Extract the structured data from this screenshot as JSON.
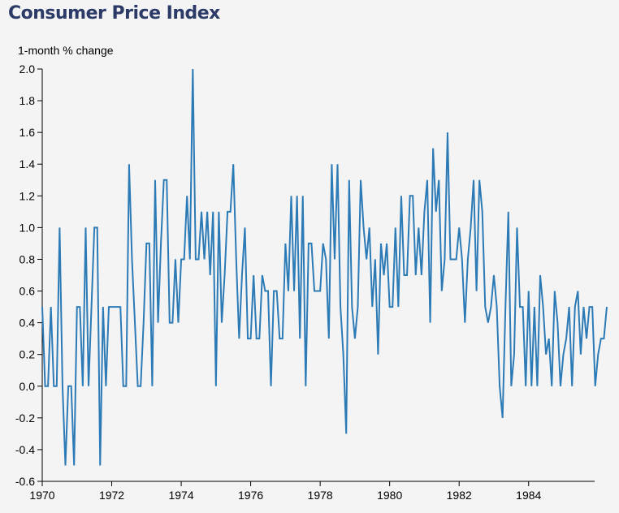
{
  "chart_data": {
    "type": "line",
    "title": "Consumer Price Index",
    "ylabel": "1-month % change",
    "xlabel": "",
    "ylim": [
      -0.6,
      2.0
    ],
    "xlim": [
      1970,
      1985.9
    ],
    "y_ticks": [
      "-0.6",
      "-0.4",
      "-0.2",
      "0.0",
      "0.2",
      "0.4",
      "0.6",
      "0.8",
      "1.0",
      "1.2",
      "1.4",
      "1.6",
      "1.8",
      "2.0"
    ],
    "x_ticks": [
      "1970",
      "1972",
      "1974",
      "1976",
      "1978",
      "1980",
      "1982",
      "1984"
    ],
    "line_color": "#2c7bb6",
    "series": [
      {
        "name": "CPI 1-month % change",
        "start": "1970-01",
        "frequency": "monthly",
        "values": [
          0.5,
          0.0,
          0.0,
          0.5,
          0.0,
          0.0,
          1.0,
          0.0,
          -0.5,
          0.0,
          0.0,
          -0.5,
          0.5,
          0.5,
          0.0,
          1.0,
          0.0,
          0.5,
          1.0,
          1.0,
          -0.5,
          0.5,
          0.0,
          0.5,
          0.5,
          0.5,
          0.5,
          0.5,
          0.0,
          0.0,
          1.4,
          0.8,
          0.4,
          0.0,
          0.0,
          0.4,
          0.9,
          0.9,
          0.0,
          1.3,
          0.4,
          0.9,
          1.3,
          1.3,
          0.4,
          0.4,
          0.8,
          0.4,
          0.8,
          0.8,
          1.2,
          0.8,
          2.0,
          0.8,
          0.8,
          1.1,
          0.8,
          1.1,
          0.7,
          1.1,
          0.0,
          1.1,
          0.4,
          0.7,
          1.1,
          1.1,
          1.4,
          0.8,
          0.3,
          0.7,
          1.0,
          0.3,
          0.3,
          0.7,
          0.3,
          0.3,
          0.7,
          0.6,
          0.6,
          0.0,
          0.6,
          0.6,
          0.3,
          0.3,
          0.9,
          0.6,
          1.2,
          0.6,
          1.2,
          0.3,
          1.2,
          0.0,
          0.9,
          0.9,
          0.6,
          0.6,
          0.6,
          0.9,
          0.8,
          0.3,
          1.4,
          0.8,
          1.4,
          0.5,
          0.2,
          -0.3,
          1.3,
          0.5,
          0.3,
          0.5,
          1.3,
          1.0,
          0.8,
          1.0,
          0.5,
          0.8,
          0.2,
          0.9,
          0.7,
          0.9,
          0.5,
          0.5,
          1.0,
          0.5,
          1.2,
          0.7,
          0.7,
          1.2,
          1.2,
          0.7,
          1.0,
          0.7,
          1.1,
          1.3,
          0.4,
          1.5,
          1.1,
          1.3,
          0.6,
          0.8,
          1.6,
          0.8,
          0.8,
          0.8,
          1.0,
          0.8,
          0.4,
          0.8,
          1.0,
          1.3,
          0.6,
          1.3,
          1.1,
          0.5,
          0.4,
          0.5,
          0.7,
          0.5,
          0.0,
          -0.2,
          0.5,
          1.1,
          0.0,
          0.2,
          1.0,
          0.5,
          0.5,
          0.0,
          0.6,
          0.0,
          0.5,
          0.0,
          0.7,
          0.5,
          0.2,
          0.3,
          0.0,
          0.6,
          0.4,
          0.0,
          0.2,
          0.3,
          0.5,
          0.0,
          0.5,
          0.6,
          0.2,
          0.5,
          0.3,
          0.5,
          0.5,
          0.0,
          0.2,
          0.3,
          0.3,
          0.5
        ]
      }
    ]
  }
}
